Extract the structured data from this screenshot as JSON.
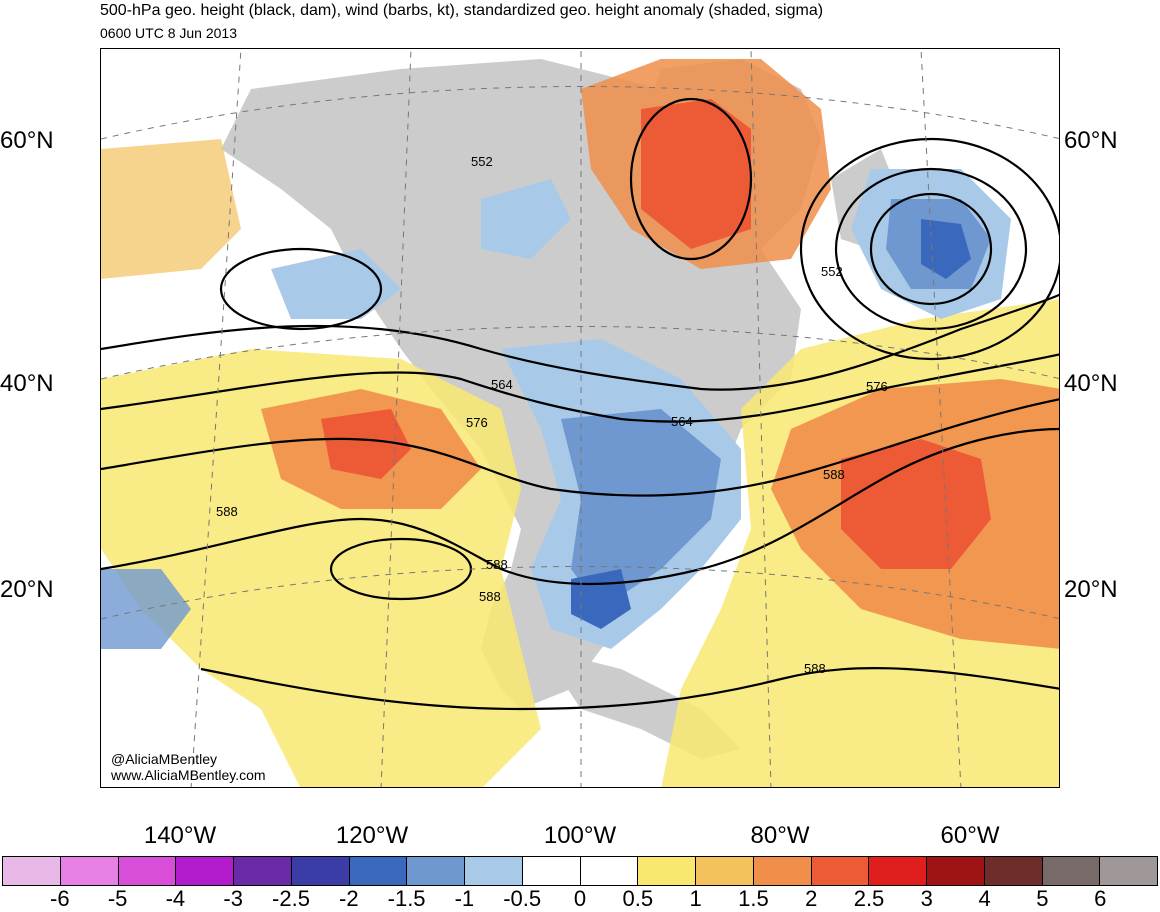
{
  "title": "500-hPa geo. height (black, dam), wind (barbs, kt), standardized geo. height anomaly (shaded, sigma)",
  "subtitle": "0600 UTC 8 Jun 2013",
  "lat_labels": [
    "60°N",
    "40°N",
    "20°N"
  ],
  "lon_labels": [
    "140°W",
    "120°W",
    "100°W",
    "80°W",
    "60°W"
  ],
  "credits": [
    "@AliciaMBentley",
    "www.AliciaMBentley.com"
  ],
  "contour_labels": [
    "552",
    "552",
    "564",
    "564",
    "576",
    "576",
    "588",
    "588",
    "588",
    "588",
    "588"
  ],
  "colorbar": {
    "labels": [
      "-6",
      "-5",
      "-4",
      "-3",
      "-2.5",
      "-2",
      "-1.5",
      "-1",
      "-0.5",
      "0",
      "0.5",
      "1",
      "1.5",
      "2",
      "2.5",
      "3",
      "4",
      "5",
      "6"
    ],
    "colors": [
      "#e8b8e6",
      "#e680e4",
      "#d84ed8",
      "#b21ccc",
      "#6a2aa8",
      "#3c3ca6",
      "#3a68bc",
      "#6f98d0",
      "#a8cae8",
      "#ffffff",
      "#ffffff",
      "#f8e870",
      "#f4c25c",
      "#f08e4a",
      "#ec5a36",
      "#e01e1e",
      "#9e1414",
      "#6e2c2a",
      "#786a68",
      "#a09898"
    ]
  }
}
